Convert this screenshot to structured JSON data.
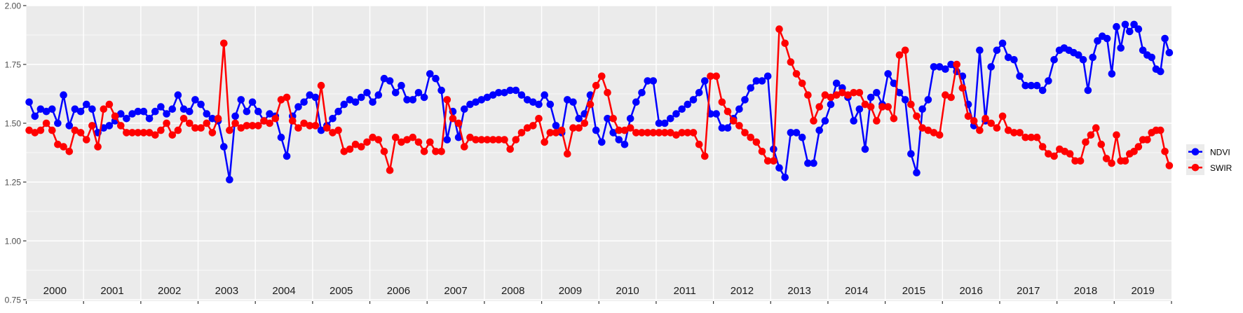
{
  "chart_data": {
    "type": "line",
    "title": "",
    "xlabel": "",
    "ylabel": "",
    "x_axis": {
      "categories": [
        "2000",
        "2001",
        "2002",
        "2003",
        "2004",
        "2005",
        "2006",
        "2007",
        "2008",
        "2009",
        "2010",
        "2011",
        "2012",
        "2013",
        "2014",
        "2015",
        "2016",
        "2017",
        "2018",
        "2019"
      ],
      "range": [
        2000,
        2020
      ],
      "tick_at_year_boundaries": true
    },
    "y_axis": {
      "tick_labels": [
        "2.00",
        "1.75",
        "1.50",
        "1.25",
        "1.00",
        "0.75"
      ],
      "tick_values": [
        2.0,
        1.75,
        1.5,
        1.25,
        1.0,
        0.75
      ],
      "range": [
        0.75,
        2.0
      ],
      "minor_gridlines": [
        1.875,
        1.625,
        1.375,
        1.125,
        0.875
      ]
    },
    "style": {
      "panel_bg": "#ebebeb",
      "grid_color": "#ffffff",
      "axis_text_color": "#4d4d4d",
      "year_label_color": "#1a1a1a",
      "tick_color": "#333333",
      "point_radius": 5.3,
      "line_width": 2.5
    },
    "legend": {
      "position": "right",
      "key_bg": "#ebebeb",
      "entries": [
        {
          "label": "NDVI",
          "color": "#0000ff"
        },
        {
          "label": "SWIR",
          "color": "#ff0000"
        }
      ]
    },
    "series": [
      {
        "name": "NDVI",
        "color": "#0000ff",
        "samples_by_year": {
          "2000": [
            1.59,
            1.53,
            1.56,
            1.55,
            1.56,
            1.5,
            1.62,
            1.49,
            1.56,
            1.55
          ],
          "2001": [
            1.58,
            1.56,
            1.46,
            1.48,
            1.49,
            1.51,
            1.54,
            1.52,
            1.54,
            1.55
          ],
          "2002": [
            1.55,
            1.52,
            1.55,
            1.57,
            1.54,
            1.56,
            1.62,
            1.56,
            1.55,
            1.6
          ],
          "2003": [
            1.58,
            1.54,
            1.52,
            1.51,
            1.4,
            1.26,
            1.53,
            1.6,
            1.55,
            1.59
          ],
          "2004": [
            1.55,
            1.51,
            1.54,
            1.53,
            1.44,
            1.36,
            1.53,
            1.57,
            1.59,
            1.62
          ],
          "2005": [
            1.61,
            1.47,
            1.49,
            1.52,
            1.55,
            1.58,
            1.6,
            1.59,
            1.61,
            1.63
          ],
          "2006": [
            1.59,
            1.62,
            1.69,
            1.68,
            1.63,
            1.66,
            1.6,
            1.6,
            1.63,
            1.61
          ],
          "2007": [
            1.71,
            1.69,
            1.64,
            1.43,
            1.55,
            1.44,
            1.56,
            1.58,
            1.59,
            1.6
          ],
          "2008": [
            1.61,
            1.62,
            1.63,
            1.63,
            1.64,
            1.64,
            1.62,
            1.6,
            1.59,
            1.58
          ],
          "2009": [
            1.62,
            1.58,
            1.49,
            1.46,
            1.6,
            1.59,
            1.52,
            1.54,
            1.62,
            1.47
          ],
          "2010": [
            1.42,
            1.52,
            1.46,
            1.43,
            1.41,
            1.52,
            1.59,
            1.63,
            1.68,
            1.68
          ],
          "2011": [
            1.5,
            1.5,
            1.52,
            1.54,
            1.56,
            1.58,
            1.6,
            1.63,
            1.68,
            1.54
          ],
          "2012": [
            1.54,
            1.48,
            1.48,
            1.52,
            1.56,
            1.6,
            1.65,
            1.68,
            1.68,
            1.7
          ],
          "2013": [
            1.39,
            1.31,
            1.27,
            1.46,
            1.46,
            1.44,
            1.33,
            1.33,
            1.47,
            1.51
          ],
          "2014": [
            1.58,
            1.67,
            1.65,
            1.61,
            1.51,
            1.56,
            1.39,
            1.61,
            1.63,
            1.58
          ],
          "2015": [
            1.71,
            1.67,
            1.63,
            1.6,
            1.37,
            1.29,
            1.56,
            1.6,
            1.74,
            1.74
          ],
          "2016": [
            1.73,
            1.75,
            1.72,
            1.7,
            1.58,
            1.49,
            1.81,
            1.51,
            1.74,
            1.81
          ],
          "2017": [
            1.84,
            1.78,
            1.77,
            1.7,
            1.66,
            1.66,
            1.66,
            1.64,
            1.68,
            1.77
          ],
          "2018": [
            1.81,
            1.82,
            1.81,
            1.8,
            1.79,
            1.77,
            1.64,
            1.78,
            1.85,
            1.87,
            1.86,
            1.71
          ],
          "2019": [
            1.91,
            1.82,
            1.92,
            1.89,
            1.92,
            1.9,
            1.81,
            1.79,
            1.78,
            1.73,
            1.72,
            1.86,
            1.8
          ]
        }
      },
      {
        "name": "SWIR",
        "color": "#ff0000",
        "samples_by_year": {
          "2000": [
            1.47,
            1.46,
            1.47,
            1.5,
            1.47,
            1.41,
            1.4,
            1.38,
            1.47,
            1.46
          ],
          "2001": [
            1.43,
            1.49,
            1.4,
            1.56,
            1.58,
            1.53,
            1.49,
            1.46,
            1.46,
            1.46
          ],
          "2002": [
            1.46,
            1.46,
            1.45,
            1.47,
            1.5,
            1.45,
            1.47,
            1.52,
            1.5,
            1.48
          ],
          "2003": [
            1.48,
            1.5,
            1.46,
            1.52,
            1.84,
            1.47,
            1.5,
            1.48,
            1.49,
            1.49
          ],
          "2004": [
            1.49,
            1.51,
            1.5,
            1.52,
            1.6,
            1.61,
            1.51,
            1.48,
            1.5,
            1.49
          ],
          "2005": [
            1.49,
            1.66,
            1.48,
            1.46,
            1.47,
            1.38,
            1.39,
            1.41,
            1.4,
            1.42
          ],
          "2006": [
            1.44,
            1.43,
            1.38,
            1.3,
            1.44,
            1.42,
            1.43,
            1.44,
            1.42,
            1.38
          ],
          "2007": [
            1.42,
            1.38,
            1.38,
            1.6,
            1.52,
            1.5,
            1.4,
            1.44,
            1.43,
            1.43
          ],
          "2008": [
            1.43,
            1.43,
            1.43,
            1.43,
            1.39,
            1.43,
            1.46,
            1.48,
            1.49,
            1.52
          ],
          "2009": [
            1.42,
            1.46,
            1.46,
            1.47,
            1.37,
            1.48,
            1.48,
            1.5,
            1.58,
            1.66
          ],
          "2010": [
            1.7,
            1.63,
            1.52,
            1.47,
            1.47,
            1.48,
            1.46,
            1.46,
            1.46,
            1.46
          ],
          "2011": [
            1.46,
            1.46,
            1.46,
            1.45,
            1.46,
            1.46,
            1.46,
            1.41,
            1.36,
            1.7
          ],
          "2012": [
            1.7,
            1.59,
            1.55,
            1.51,
            1.49,
            1.46,
            1.44,
            1.42,
            1.38,
            1.34
          ],
          "2013": [
            1.34,
            1.9,
            1.84,
            1.76,
            1.71,
            1.67,
            1.62,
            1.51,
            1.57,
            1.62
          ],
          "2014": [
            1.61,
            1.62,
            1.63,
            1.62,
            1.63,
            1.63,
            1.58,
            1.57,
            1.51,
            1.57
          ],
          "2015": [
            1.57,
            1.52,
            1.79,
            1.81,
            1.58,
            1.53,
            1.48,
            1.47,
            1.46,
            1.45
          ],
          "2016": [
            1.62,
            1.61,
            1.75,
            1.65,
            1.53,
            1.51,
            1.47,
            1.52,
            1.5,
            1.48
          ],
          "2017": [
            1.53,
            1.47,
            1.46,
            1.46,
            1.44,
            1.44,
            1.44,
            1.4,
            1.37,
            1.36
          ],
          "2018": [
            1.39,
            1.38,
            1.37,
            1.34,
            1.34,
            1.42,
            1.45,
            1.48,
            1.41,
            1.35,
            1.33
          ],
          "2019": [
            1.45,
            1.34,
            1.34,
            1.37,
            1.38,
            1.4,
            1.43,
            1.43,
            1.46,
            1.47,
            1.47,
            1.38,
            1.32
          ]
        }
      }
    ]
  }
}
